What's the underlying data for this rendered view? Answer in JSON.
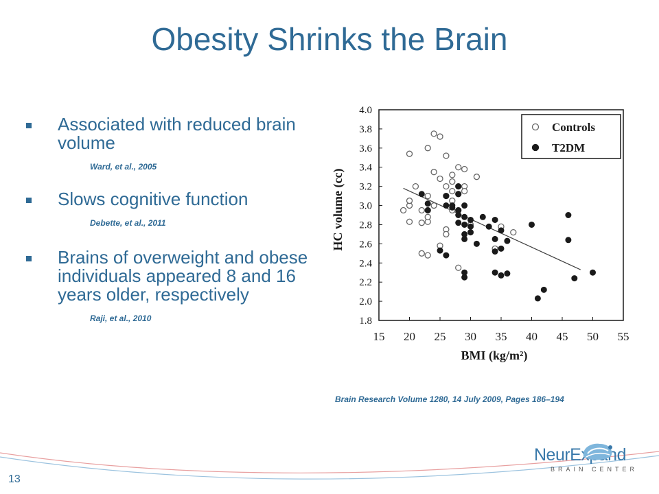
{
  "slide": {
    "title": "Obesity Shrinks the Brain",
    "page_number": "13",
    "bullets": [
      {
        "text": "Associated with reduced brain volume",
        "citation": "Ward, et al., 2005"
      },
      {
        "text": "Slows cognitive function",
        "citation": "Debette, et al., 2011"
      },
      {
        "text": "Brains of overweight and obese individuals appeared 8 and 16 years older, respectively",
        "citation": "Raji, et al., 2010"
      }
    ],
    "source": "Brain Research Volume 1280, 14 July 2009, Pages 186–194",
    "logo": {
      "word": "NeurExpand",
      "sub": "BRAIN CENTER"
    },
    "colors": {
      "accent": "#2f6a95",
      "chart_ink": "#1a1a1a"
    }
  },
  "chart_data": {
    "type": "scatter",
    "title": "",
    "xlabel": "BMI (kg/m²)",
    "ylabel": "HC volume (cc)",
    "xlim": [
      15,
      55
    ],
    "ylim": [
      1.8,
      4.0
    ],
    "xticks": [
      "15",
      "20",
      "25",
      "30",
      "35",
      "40",
      "45",
      "50",
      "55"
    ],
    "yticks": [
      "1.8",
      "2.0",
      "2.2",
      "2.4",
      "2.6",
      "2.8",
      "3.0",
      "3.2",
      "3.4",
      "3.6",
      "3.8",
      "4.0"
    ],
    "legend": {
      "position": "top-right"
    },
    "series": [
      {
        "name": "Controls",
        "marker": "open-circle",
        "points": [
          [
            20,
            3.54
          ],
          [
            21,
            3.2
          ],
          [
            19,
            2.95
          ],
          [
            20,
            3.0
          ],
          [
            20,
            3.05
          ],
          [
            20,
            2.83
          ],
          [
            22,
            2.82
          ],
          [
            22,
            2.95
          ],
          [
            23,
            2.95
          ],
          [
            23,
            3.1
          ],
          [
            23,
            2.83
          ],
          [
            23,
            2.88
          ],
          [
            23,
            3.6
          ],
          [
            24,
            3.75
          ],
          [
            24,
            3.35
          ],
          [
            24,
            3.0
          ],
          [
            25,
            3.72
          ],
          [
            25,
            3.28
          ],
          [
            22,
            2.5
          ],
          [
            23,
            2.48
          ],
          [
            25,
            2.58
          ],
          [
            26,
            3.52
          ],
          [
            26,
            3.2
          ],
          [
            26,
            3.1
          ],
          [
            26,
            2.75
          ],
          [
            26,
            2.7
          ],
          [
            27,
            3.32
          ],
          [
            27,
            3.25
          ],
          [
            27,
            3.15
          ],
          [
            27,
            3.05
          ],
          [
            27,
            2.95
          ],
          [
            28,
            3.4
          ],
          [
            28,
            3.2
          ],
          [
            28,
            3.12
          ],
          [
            28,
            2.95
          ],
          [
            29,
            3.38
          ],
          [
            29,
            3.2
          ],
          [
            29,
            3.15
          ],
          [
            28,
            2.35
          ],
          [
            30,
            2.8
          ],
          [
            31,
            3.3
          ],
          [
            34,
            2.55
          ],
          [
            35,
            2.78
          ],
          [
            37,
            2.72
          ]
        ]
      },
      {
        "name": "T2DM",
        "marker": "filled-circle",
        "points": [
          [
            22,
            3.12
          ],
          [
            23,
            2.95
          ],
          [
            23,
            3.02
          ],
          [
            25,
            2.53
          ],
          [
            26,
            2.48
          ],
          [
            26,
            3.0
          ],
          [
            26,
            3.1
          ],
          [
            27,
            2.98
          ],
          [
            27,
            3.0
          ],
          [
            28,
            3.2
          ],
          [
            28,
            3.12
          ],
          [
            28,
            2.95
          ],
          [
            28,
            2.9
          ],
          [
            28,
            2.82
          ],
          [
            29,
            3.0
          ],
          [
            29,
            2.88
          ],
          [
            29,
            2.8
          ],
          [
            29,
            2.7
          ],
          [
            29,
            2.65
          ],
          [
            29,
            2.3
          ],
          [
            29,
            2.25
          ],
          [
            30,
            2.85
          ],
          [
            30,
            2.78
          ],
          [
            30,
            2.72
          ],
          [
            31,
            2.6
          ],
          [
            32,
            2.88
          ],
          [
            33,
            2.78
          ],
          [
            34,
            2.85
          ],
          [
            34,
            2.65
          ],
          [
            34,
            2.3
          ],
          [
            34,
            2.52
          ],
          [
            35,
            2.74
          ],
          [
            35,
            2.55
          ],
          [
            35,
            2.27
          ],
          [
            36,
            2.63
          ],
          [
            36,
            2.29
          ],
          [
            40,
            2.8
          ],
          [
            41,
            2.03
          ],
          [
            42,
            2.12
          ],
          [
            46,
            2.9
          ],
          [
            46,
            2.64
          ],
          [
            47,
            2.24
          ],
          [
            50,
            2.3
          ]
        ]
      }
    ],
    "trendline": {
      "from": [
        19,
        3.18
      ],
      "to": [
        48,
        2.33
      ]
    }
  }
}
